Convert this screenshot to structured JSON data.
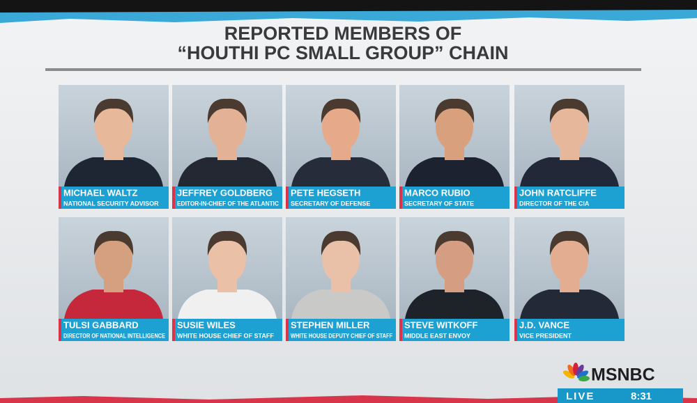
{
  "header": {
    "title_lines": [
      "REPORTED MEMBERS OF",
      "“HOUTHI PC SMALL GROUP” CHAIN"
    ]
  },
  "members": [
    {
      "name": "MICHAEL WALTZ",
      "role": "NATIONAL SECURITY ADVISOR"
    },
    {
      "name": "JEFFREY GOLDBERG",
      "role": "EDITOR-IN-CHIEF OF THE ATLANTIC"
    },
    {
      "name": "PETE HEGSETH",
      "role": "SECRETARY OF DEFENSE"
    },
    {
      "name": "MARCO RUBIO",
      "role": "SECRETARY OF STATE"
    },
    {
      "name": "JOHN RATCLIFFE",
      "role": "DIRECTOR OF THE CIA"
    },
    {
      "name": "TULSI GABBARD",
      "role": "DIRECTOR OF NATIONAL INTELLIGENCE"
    },
    {
      "name": "SUSIE WILES",
      "role": "WHITE HOUSE CHIEF OF STAFF"
    },
    {
      "name": "STEPHEN MILLER",
      "role": "WHITE HOUSE DEPUTY CHIEF OF STAFF"
    },
    {
      "name": "STEVE WITKOFF",
      "role": "MIDDLE EAST ENVOY"
    },
    {
      "name": "J.D. VANCE",
      "role": "VICE PRESIDENT"
    }
  ],
  "network": {
    "logo": "MSNBC",
    "live": "LIVE",
    "time": "8:31"
  }
}
